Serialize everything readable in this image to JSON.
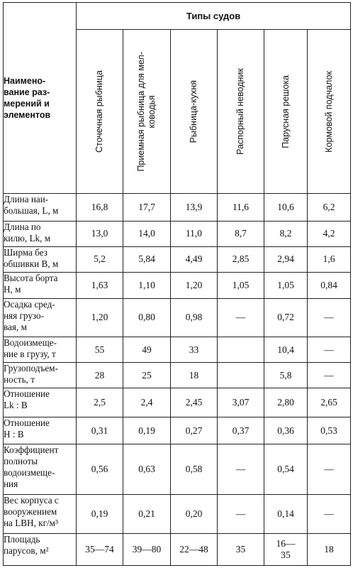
{
  "table": {
    "group_header": "Типы судов",
    "corner_header": "Наимено-\nвание раз-\nмерений и\nэлементов",
    "columns": [
      "Сточечная рыбница",
      "Приемная рыбница для мел-\nководья",
      "Рыбница-кухня",
      "Распорный неводник",
      "Парусная решока",
      "Кормовой подчалок"
    ],
    "rows": [
      {
        "label": "Длина наи-\nбольшая, L, м",
        "values": [
          "16,8",
          "17,7",
          "13,9",
          "11,6",
          "10,6",
          "6,2"
        ]
      },
      {
        "label": "Длина по\nкилю, Lk, м",
        "values": [
          "13,0",
          "14,0",
          "11,0",
          "8,7",
          "8,2",
          "4,2"
        ]
      },
      {
        "label": "Ширма без\nобшивки B, м",
        "values": [
          "5,2",
          "5,84",
          "4,49",
          "2,85",
          "2,94",
          "1,6"
        ]
      },
      {
        "label": "Высота борта\nH, м",
        "values": [
          "1,63",
          "1,10",
          "1,20",
          "1,05",
          "1,05",
          "0,84"
        ]
      },
      {
        "label": "Осадка сред-\nняя грузо-\nвая, м",
        "values": [
          "1,20",
          "0,80",
          "0,98",
          "—",
          "0,72",
          "—"
        ]
      },
      {
        "label": "Водоизмеще-\nние в грузу, т",
        "values": [
          "55",
          "49",
          "33",
          "",
          "10,4",
          "—"
        ]
      },
      {
        "label": "Грузоподъем-\nность, т",
        "values": [
          "28",
          "25",
          "18",
          "",
          "5,8",
          "—"
        ]
      },
      {
        "label": "Отношение\nLk : B",
        "values": [
          "2,5",
          "2,4",
          "2,45",
          "3,07",
          "2,80",
          "2,65"
        ]
      },
      {
        "label": "Отношение\nH : B",
        "values": [
          "0,31",
          "0,19",
          "0,27",
          "0,37",
          "0,36",
          "0,53"
        ]
      },
      {
        "label": "Коэффициент\nполноты\nводоизмеще-\nния",
        "values": [
          "0,56",
          "0,63",
          "0,58",
          "—",
          "0,54",
          "—"
        ]
      },
      {
        "label": "Вес корпуса с\nвооружением\nна LBH, кг/м³",
        "values": [
          "0,19",
          "0,21",
          "0,20",
          "—",
          "0,14",
          "—"
        ]
      },
      {
        "label": "Площадь\nпарусов, м²",
        "values": [
          "35—74",
          "39—80",
          "22—48",
          "35",
          "16—\n35",
          "18"
        ]
      }
    ]
  }
}
